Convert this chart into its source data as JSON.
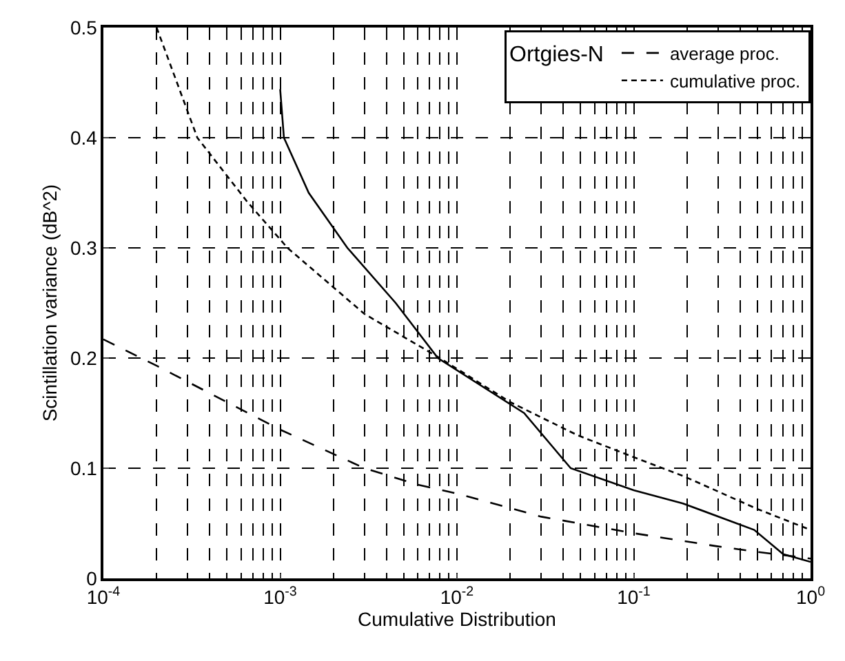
{
  "chart_data": {
    "type": "line",
    "xlabel": "Cumulative Distribution",
    "ylabel": "Scintillation variance (dB^2)",
    "legend_title": "Ortgies-N",
    "log": "x",
    "grid": true,
    "legend": "top right",
    "xlim": [
      0.0001,
      1
    ],
    "xticks": [
      {
        "value": 0.0001,
        "label": "10$^{-4}$"
      },
      {
        "value": 0.001,
        "label": "10$^{-3}$"
      },
      {
        "value": 0.01,
        "label": "10$^{-2}$"
      },
      {
        "value": 0.1,
        "label": "10$^{-1}$"
      },
      {
        "value": 1,
        "label": "10$^{0}$"
      }
    ],
    "ylim": [
      0,
      0.5
    ],
    "yticks": [
      0,
      0.1,
      0.2,
      0.3,
      0.4,
      0.5
    ],
    "series": [
      {
        "name": "average proc.",
        "color": "#000000",
        "line_style": "dashed",
        "x": [
          0.0001,
          0.0002,
          0.0005,
          0.001,
          0.003,
          0.006,
          0.01,
          0.03,
          0.1,
          0.3,
          0.5,
          0.8,
          1
        ],
        "values": [
          0.217,
          0.193,
          0.16,
          0.135,
          0.1,
          0.085,
          0.077,
          0.056,
          0.041,
          0.029,
          0.024,
          0.02,
          0.018
        ]
      },
      {
        "name": "cumulative proc.",
        "color": "#000000",
        "line_style": "dotted",
        "x": [
          0.0002,
          0.00034,
          0.00065,
          0.0011,
          0.003,
          0.008,
          0.02,
          0.048,
          0.1,
          0.19,
          0.5,
          1
        ],
        "values": [
          0.5,
          0.4,
          0.342,
          0.3,
          0.24,
          0.2,
          0.16,
          0.13,
          0.11,
          0.093,
          0.063,
          0.044
        ]
      },
      {
        "color": "#000000",
        "line_style": "solid",
        "x": [
          0.001,
          0.00105,
          0.00145,
          0.0024,
          0.0045,
          0.0078,
          0.024,
          0.044,
          0.1,
          0.19,
          0.48,
          0.7,
          1
        ],
        "values": [
          0.444,
          0.4,
          0.35,
          0.3,
          0.25,
          0.2,
          0.15,
          0.1,
          0.08,
          0.068,
          0.044,
          0.022,
          0.015
        ]
      }
    ]
  }
}
